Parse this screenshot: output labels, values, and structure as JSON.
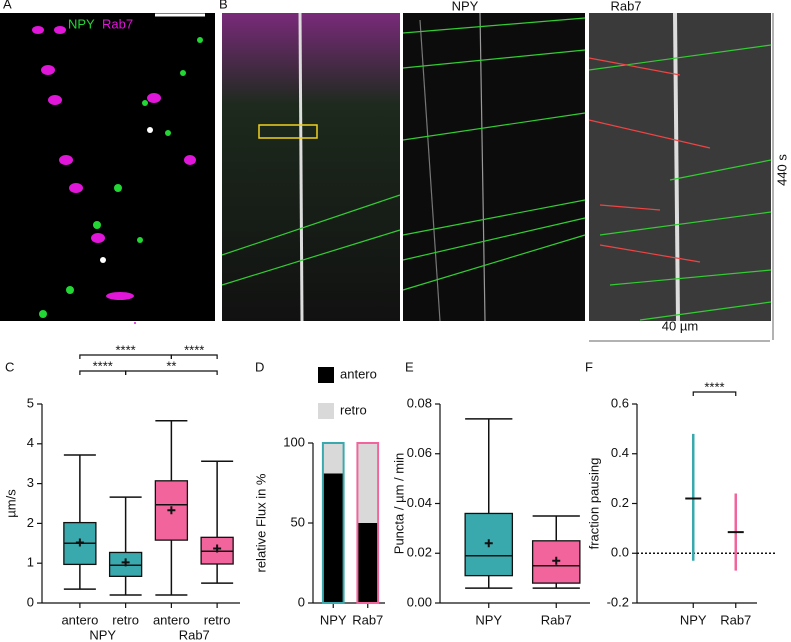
{
  "panel_labels": [
    "A",
    "B",
    "C",
    "D",
    "E",
    "F"
  ],
  "images": {
    "a_channels": [
      "NPY",
      "Rab7"
    ],
    "b_titles": [
      "NPY",
      "Rab7"
    ],
    "time_label": "440 s",
    "scale_label": "40 µm"
  },
  "chart_data": [
    {
      "type": "box",
      "ylabel": "µm/s",
      "categories": [
        "antero",
        "retro",
        "antero",
        "retro"
      ],
      "group_labels": [
        "NPY",
        "Rab7"
      ],
      "colors": [
        "#3aa9ad",
        "#3aa9ad",
        "#f2659c",
        "#f2659c"
      ],
      "boxes": [
        {
          "min": 0.35,
          "q1": 0.97,
          "median": 1.5,
          "q3": 2.02,
          "max": 3.72,
          "mean": 1.52
        },
        {
          "min": 0.2,
          "q1": 0.67,
          "median": 0.95,
          "q3": 1.27,
          "max": 2.66,
          "mean": 1.02
        },
        {
          "min": 0.2,
          "q1": 1.58,
          "median": 2.47,
          "q3": 3.07,
          "max": 4.58,
          "mean": 2.33
        },
        {
          "min": 0.5,
          "q1": 0.98,
          "median": 1.3,
          "q3": 1.65,
          "max": 3.56,
          "mean": 1.37
        }
      ],
      "ylim": [
        0,
        5
      ],
      "yticks": [
        0,
        1,
        2,
        3,
        4,
        5
      ],
      "brackets": [
        {
          "between": [
            0,
            2
          ],
          "label": "****",
          "level": 2
        },
        {
          "between": [
            2,
            3
          ],
          "label": "****",
          "level": 2
        },
        {
          "between": [
            0,
            1
          ],
          "label": "****",
          "level": 1
        },
        {
          "between": [
            1,
            3
          ],
          "label": "**",
          "level": 1
        }
      ]
    },
    {
      "type": "stacked_bar",
      "ylabel": "relative Flux in %",
      "categories": [
        "NPY",
        "Rab7"
      ],
      "outline_colors": [
        "#3aa9ad",
        "#f2659c"
      ],
      "series": [
        {
          "name": "antero",
          "color": "#000000",
          "values": [
            81,
            50
          ]
        },
        {
          "name": "retro",
          "color": "#d9d9d9",
          "values": [
            19,
            50
          ]
        }
      ],
      "ylim": [
        0,
        100
      ],
      "yticks": [
        0,
        50,
        100
      ]
    },
    {
      "type": "box",
      "ylabel": "Puncta /  µm / min",
      "categories": [
        "NPY",
        "Rab7"
      ],
      "colors": [
        "#3aa9ad",
        "#f2659c"
      ],
      "boxes": [
        {
          "min": 0.006,
          "q1": 0.011,
          "median": 0.019,
          "q3": 0.036,
          "max": 0.074,
          "mean": 0.024
        },
        {
          "min": 0.006,
          "q1": 0.008,
          "median": 0.015,
          "q3": 0.025,
          "max": 0.035,
          "mean": 0.017
        }
      ],
      "ylim": [
        0,
        0.08
      ],
      "yticks": [
        {
          "value": 0,
          "label": "0.00"
        },
        0.02,
        0.04,
        0.06,
        0.08
      ]
    },
    {
      "type": "range",
      "ylabel": "fraction pausing",
      "categories": [
        "NPY",
        "Rab7"
      ],
      "colors": [
        "#3aa9ad",
        "#f2659c"
      ],
      "points": [
        {
          "mean": 0.22,
          "low": -0.03,
          "high": 0.48
        },
        {
          "mean": 0.085,
          "low": -0.07,
          "high": 0.24
        }
      ],
      "ylim": [
        -0.2,
        0.6
      ],
      "yticks": [
        -0.2,
        {
          "value": 0,
          "label": "0.0"
        },
        0.2,
        0.4,
        0.6
      ],
      "reference_line": 0,
      "brackets": [
        {
          "between": [
            0,
            1
          ],
          "label": "****",
          "level": 1
        }
      ]
    }
  ]
}
